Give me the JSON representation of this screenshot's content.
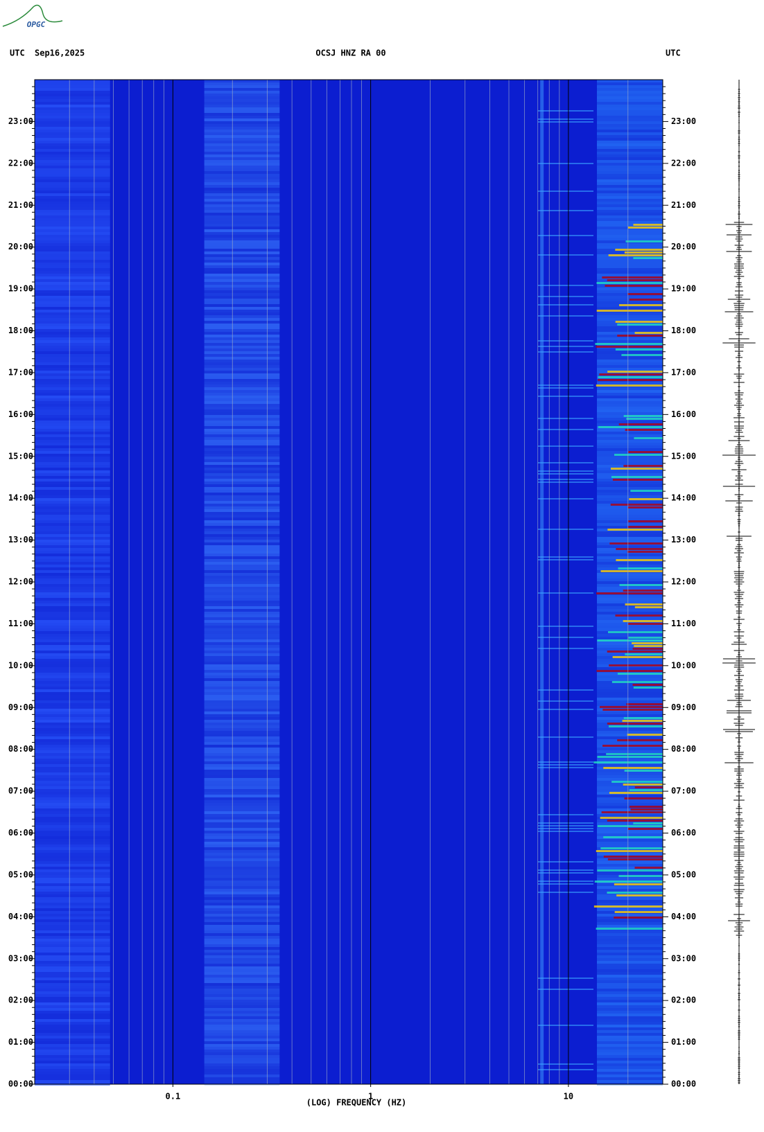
{
  "chart_data": {
    "type": "spectrogram",
    "header_left": "UTC",
    "date": "Sep16,2025",
    "title": "OCSJ HNZ RA 00",
    "header_right": "UTC",
    "logo": "OPGC",
    "xlabel": "(LOG) FREQUENCY (HZ)",
    "xscale": "log",
    "xlim": [
      0.02,
      30
    ],
    "xticks": [
      0.1,
      1,
      10
    ],
    "minor_xticks": [
      0.03,
      0.04,
      0.05,
      0.06,
      0.07,
      0.08,
      0.09,
      0.2,
      0.3,
      0.4,
      0.5,
      0.6,
      0.7,
      0.8,
      0.9,
      2,
      3,
      4,
      5,
      6,
      7,
      8,
      9,
      20
    ],
    "ylim": [
      0,
      24
    ],
    "yticks": [
      {
        "value": 0,
        "label": "00:00"
      },
      {
        "value": 1,
        "label": "01:00"
      },
      {
        "value": 2,
        "label": "02:00"
      },
      {
        "value": 3,
        "label": "03:00"
      },
      {
        "value": 4,
        "label": "04:00"
      },
      {
        "value": 5,
        "label": "05:00"
      },
      {
        "value": 6,
        "label": "06:00"
      },
      {
        "value": 7,
        "label": "07:00"
      },
      {
        "value": 8,
        "label": "08:00"
      },
      {
        "value": 9,
        "label": "09:00"
      },
      {
        "value": 10,
        "label": "10:00"
      },
      {
        "value": 11,
        "label": "11:00"
      },
      {
        "value": 12,
        "label": "12:00"
      },
      {
        "value": 13,
        "label": "13:00"
      },
      {
        "value": 14,
        "label": "14:00"
      },
      {
        "value": 15,
        "label": "15:00"
      },
      {
        "value": 16,
        "label": "16:00"
      },
      {
        "value": 17,
        "label": "17:00"
      },
      {
        "value": 18,
        "label": "18:00"
      },
      {
        "value": 19,
        "label": "19:00"
      },
      {
        "value": 20,
        "label": "20:00"
      },
      {
        "value": 21,
        "label": "21:00"
      },
      {
        "value": 22,
        "label": "22:00"
      },
      {
        "value": 23,
        "label": "23:00"
      }
    ]
  }
}
